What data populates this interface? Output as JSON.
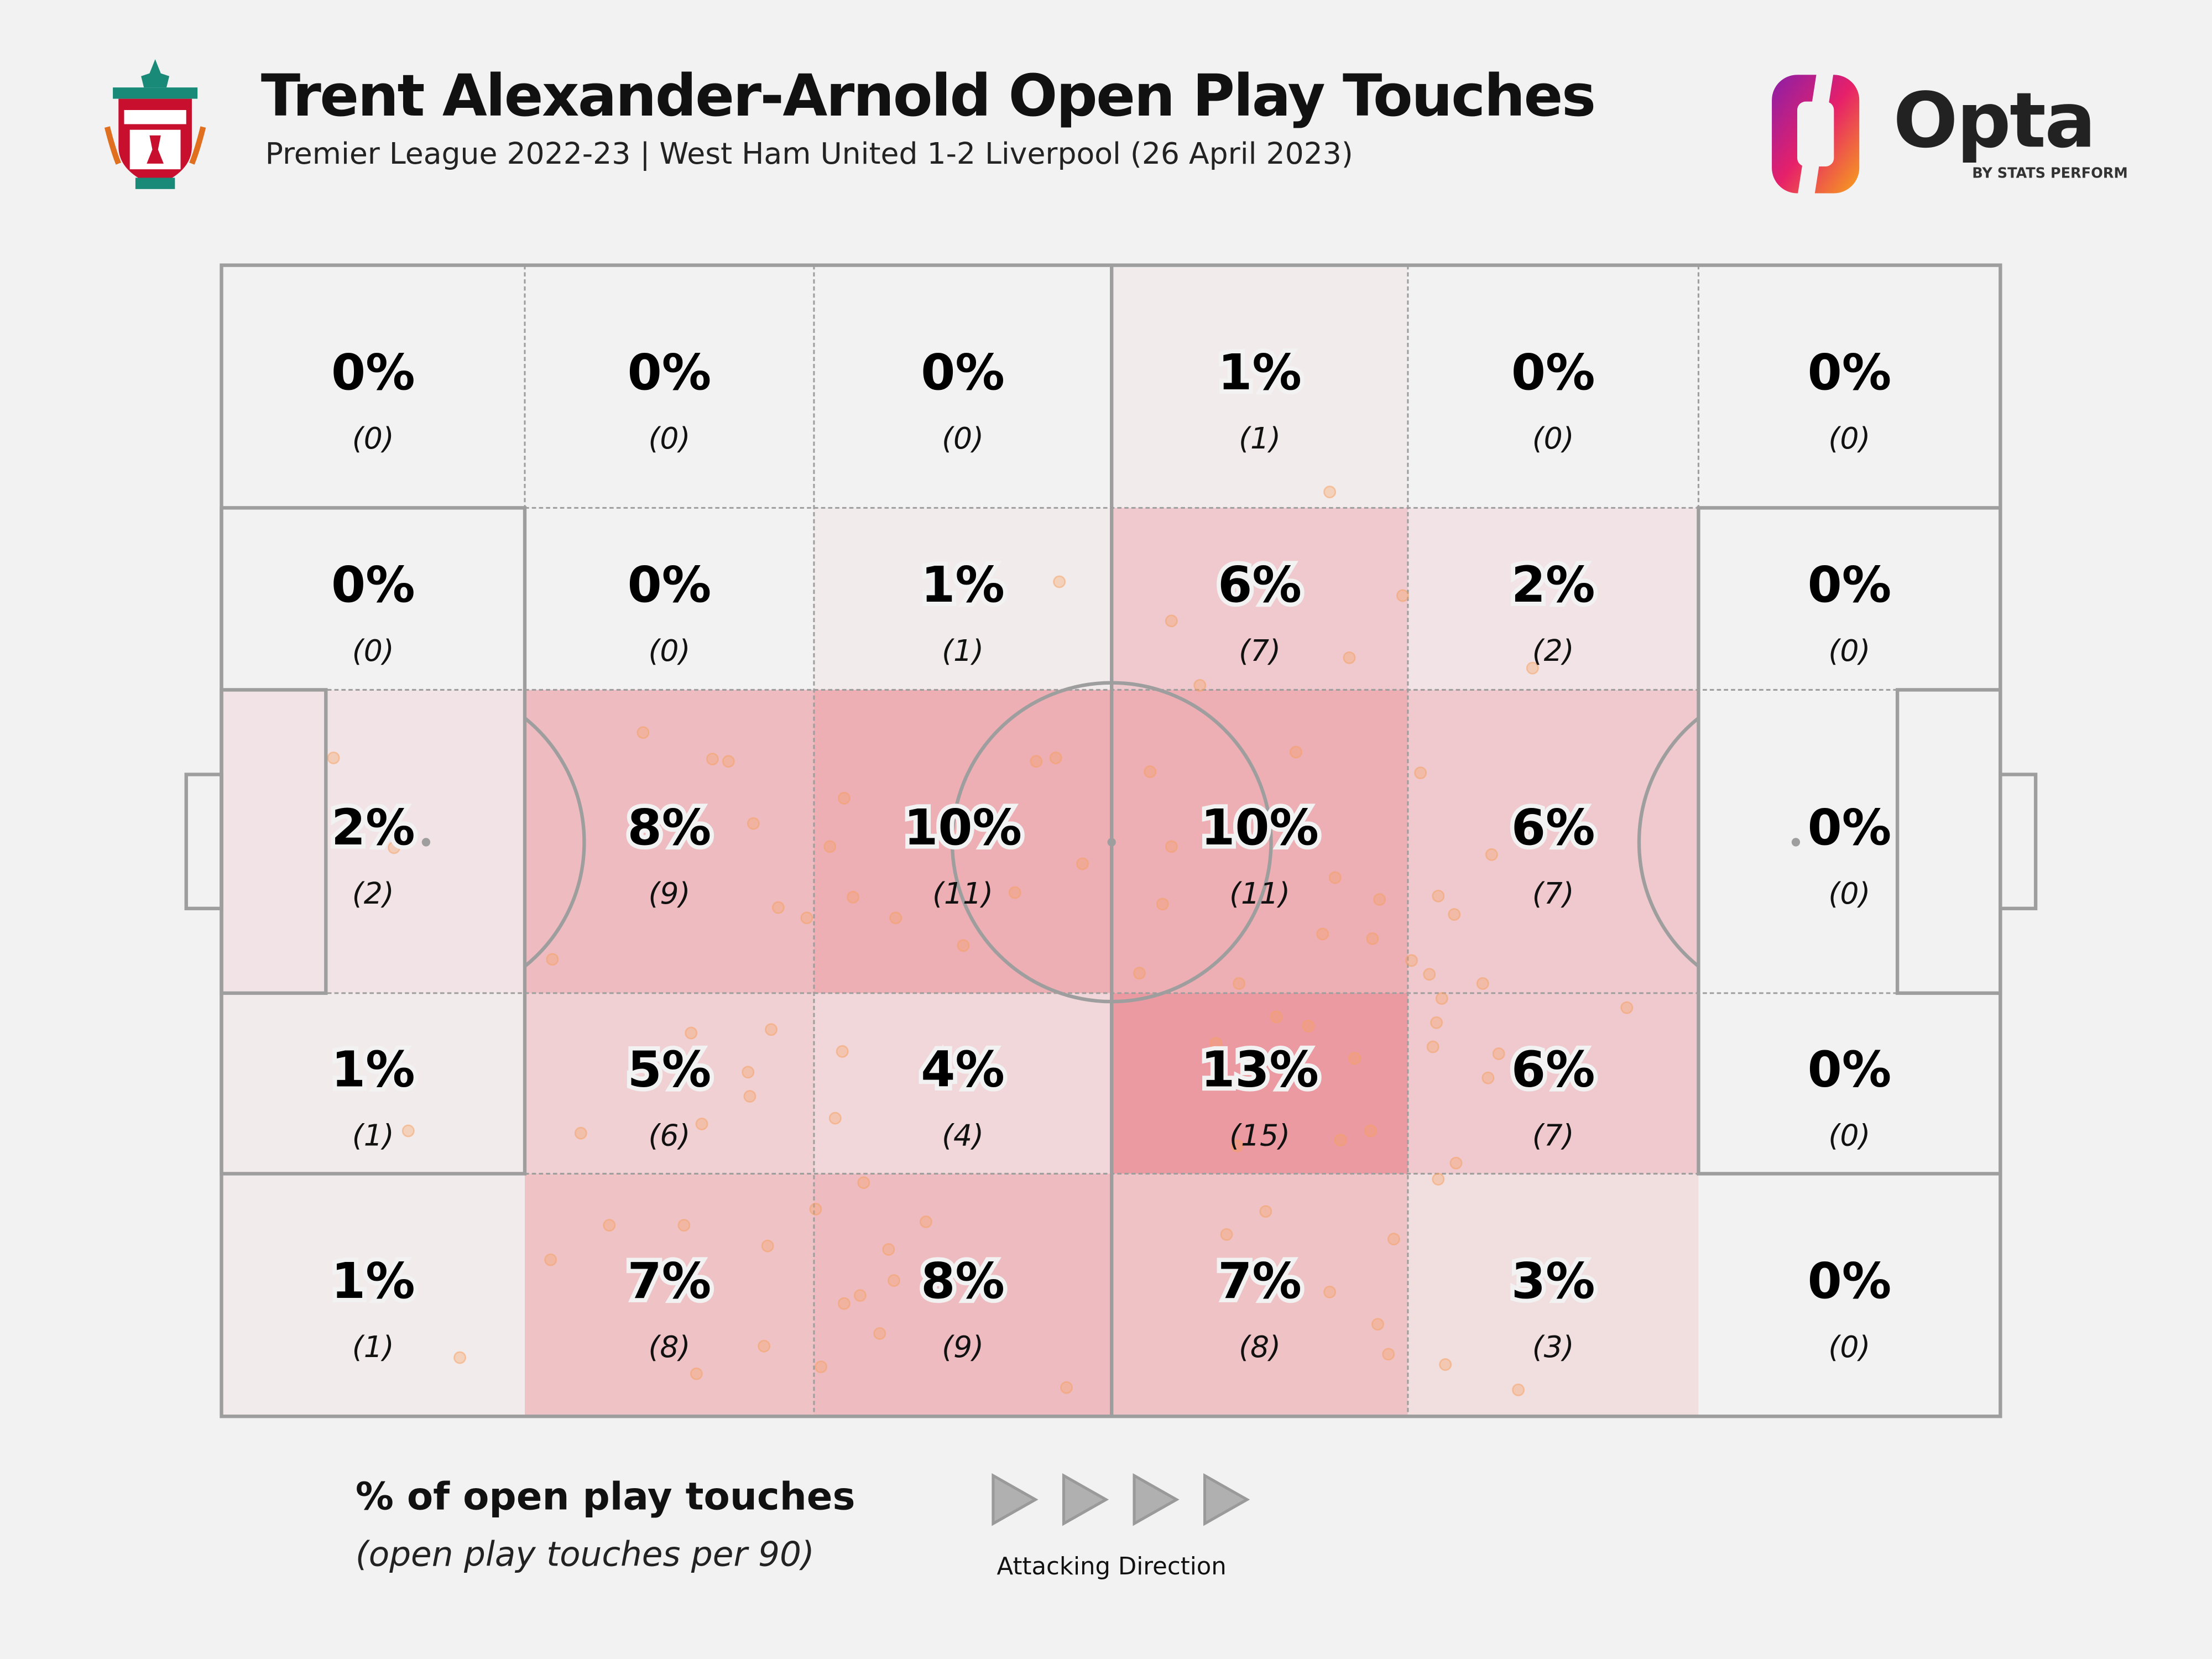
{
  "header": {
    "title": "Trent Alexander-Arnold Open Play Touches",
    "subtitle": "Premier League 2022-23 | West Ham United 1-2 Liverpool (26 April 2023)",
    "club_logo": "Liverpool FC crest",
    "brand": {
      "name": "Opta",
      "tagline": "BY STATS PERFORM"
    }
  },
  "legend": {
    "title": "% of open play touches",
    "subtitle": "(open play touches per 90)",
    "direction_label": "Attacking Direction",
    "direction_icon": "play-arrow-icon"
  },
  "colors": {
    "background": "#f2f2f2",
    "max_fill": "#eb9aa1",
    "line": "#9e9e9e",
    "dot": "#f5a060"
  },
  "chart_data": {
    "type": "heatmap",
    "title": "Trent Alexander-Arnold Open Play Touches",
    "rows": 5,
    "cols": 6,
    "cells": [
      [
        {
          "pct": "0%",
          "count": "(0)",
          "v": 0
        },
        {
          "pct": "0%",
          "count": "(0)",
          "v": 0
        },
        {
          "pct": "0%",
          "count": "(0)",
          "v": 0
        },
        {
          "pct": "1%",
          "count": "(1)",
          "v": 1
        },
        {
          "pct": "0%",
          "count": "(0)",
          "v": 0
        },
        {
          "pct": "0%",
          "count": "(0)",
          "v": 0
        }
      ],
      [
        {
          "pct": "0%",
          "count": "(0)",
          "v": 0
        },
        {
          "pct": "0%",
          "count": "(0)",
          "v": 0
        },
        {
          "pct": "1%",
          "count": "(1)",
          "v": 1
        },
        {
          "pct": "6%",
          "count": "(7)",
          "v": 6
        },
        {
          "pct": "2%",
          "count": "(2)",
          "v": 2
        },
        {
          "pct": "0%",
          "count": "(0)",
          "v": 0
        }
      ],
      [
        {
          "pct": "2%",
          "count": "(2)",
          "v": 2
        },
        {
          "pct": "8%",
          "count": "(9)",
          "v": 8
        },
        {
          "pct": "10%",
          "count": "(11)",
          "v": 10
        },
        {
          "pct": "10%",
          "count": "(11)",
          "v": 10
        },
        {
          "pct": "6%",
          "count": "(7)",
          "v": 6
        },
        {
          "pct": "0%",
          "count": "(0)",
          "v": 0
        }
      ],
      [
        {
          "pct": "1%",
          "count": "(1)",
          "v": 1
        },
        {
          "pct": "5%",
          "count": "(6)",
          "v": 5
        },
        {
          "pct": "4%",
          "count": "(4)",
          "v": 4
        },
        {
          "pct": "13%",
          "count": "(15)",
          "v": 13
        },
        {
          "pct": "6%",
          "count": "(7)",
          "v": 6
        },
        {
          "pct": "0%",
          "count": "(0)",
          "v": 0
        }
      ],
      [
        {
          "pct": "1%",
          "count": "(1)",
          "v": 1
        },
        {
          "pct": "7%",
          "count": "(8)",
          "v": 7
        },
        {
          "pct": "8%",
          "count": "(9)",
          "v": 8
        },
        {
          "pct": "7%",
          "count": "(8)",
          "v": 7
        },
        {
          "pct": "3%",
          "count": "(3)",
          "v": 3
        },
        {
          "pct": "0%",
          "count": "(0)",
          "v": 0
        }
      ]
    ],
    "touches_pitch_pct": [
      [
        62.3,
        19.7
      ],
      [
        47.1,
        27.5
      ],
      [
        53.4,
        30.9
      ],
      [
        63.4,
        34.1
      ],
      [
        73.7,
        35.0
      ],
      [
        66.4,
        28.7
      ],
      [
        23.7,
        40.6
      ],
      [
        27.6,
        42.9
      ],
      [
        28.5,
        43.1
      ],
      [
        29.9,
        48.5
      ],
      [
        35.0,
        46.3
      ],
      [
        34.2,
        50.5
      ],
      [
        35.5,
        54.9
      ],
      [
        37.9,
        56.7
      ],
      [
        31.3,
        55.8
      ],
      [
        32.9,
        56.7
      ],
      [
        18.6,
        60.3
      ],
      [
        45.8,
        43.1
      ],
      [
        46.9,
        42.8
      ],
      [
        48.4,
        52.0
      ],
      [
        44.6,
        54.5
      ],
      [
        41.7,
        59.1
      ],
      [
        52.2,
        44.0
      ],
      [
        53.4,
        50.5
      ],
      [
        60.4,
        42.3
      ],
      [
        55.0,
        36.5
      ],
      [
        62.6,
        53.2
      ],
      [
        65.1,
        55.1
      ],
      [
        61.9,
        58.1
      ],
      [
        64.7,
        58.5
      ],
      [
        57.2,
        62.4
      ],
      [
        51.6,
        61.5
      ],
      [
        52.9,
        55.5
      ],
      [
        67.4,
        44.1
      ],
      [
        71.4,
        51.2
      ],
      [
        68.4,
        54.8
      ],
      [
        69.3,
        56.4
      ],
      [
        66.9,
        60.4
      ],
      [
        67.9,
        61.6
      ],
      [
        70.9,
        62.4
      ],
      [
        79.0,
        64.5
      ],
      [
        68.6,
        63.7
      ],
      [
        68.3,
        65.8
      ],
      [
        68.1,
        67.9
      ],
      [
        71.2,
        70.6
      ],
      [
        71.8,
        68.5
      ],
      [
        69.4,
        78.0
      ],
      [
        68.4,
        79.4
      ],
      [
        6.3,
        42.8
      ],
      [
        9.7,
        50.6
      ],
      [
        10.5,
        75.2
      ],
      [
        13.4,
        94.9
      ],
      [
        26.4,
        66.7
      ],
      [
        30.9,
        66.4
      ],
      [
        29.6,
        70.1
      ],
      [
        29.7,
        72.2
      ],
      [
        27.0,
        74.6
      ],
      [
        20.2,
        75.4
      ],
      [
        34.9,
        68.3
      ],
      [
        34.5,
        74.1
      ],
      [
        55.9,
        67.6
      ],
      [
        59.3,
        65.3
      ],
      [
        61.1,
        66.1
      ],
      [
        63.7,
        68.9
      ],
      [
        64.6,
        75.2
      ],
      [
        62.9,
        76.0
      ],
      [
        57.1,
        76.5
      ],
      [
        18.5,
        86.4
      ],
      [
        21.8,
        83.4
      ],
      [
        26.0,
        83.4
      ],
      [
        30.7,
        85.2
      ],
      [
        26.7,
        96.3
      ],
      [
        30.5,
        93.9
      ],
      [
        33.4,
        82.0
      ],
      [
        36.1,
        79.7
      ],
      [
        37.5,
        85.5
      ],
      [
        37.8,
        88.2
      ],
      [
        35.9,
        89.5
      ],
      [
        35.0,
        90.2
      ],
      [
        37.0,
        92.8
      ],
      [
        39.6,
        83.1
      ],
      [
        33.7,
        95.7
      ],
      [
        47.5,
        97.5
      ],
      [
        56.5,
        84.2
      ],
      [
        58.7,
        82.2
      ],
      [
        62.3,
        89.2
      ],
      [
        65.0,
        92.0
      ],
      [
        65.6,
        94.6
      ],
      [
        65.9,
        84.6
      ],
      [
        68.8,
        95.5
      ],
      [
        72.9,
        97.7
      ]
    ]
  }
}
